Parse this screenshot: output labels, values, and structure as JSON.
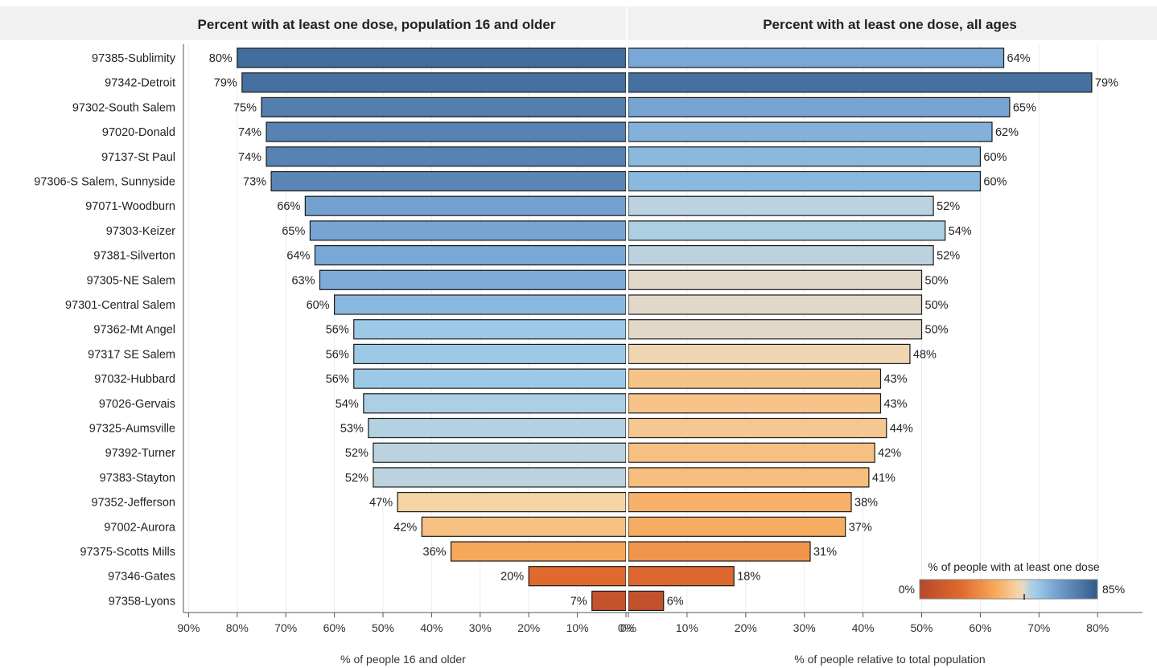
{
  "chart_data": {
    "type": "bar",
    "categories": [
      "97385-Sublimity",
      "97342-Detroit",
      "97302-South Salem",
      "97020-Donald",
      "97137-St Paul",
      "97306-S Salem, Sunnyside",
      "97071-Woodburn",
      "97303-Keizer",
      "97381-Silverton",
      "97305-NE Salem",
      "97301-Central Salem",
      "97362-Mt Angel",
      "97317 SE Salem",
      "97032-Hubbard",
      "97026-Gervais",
      "97325-Aumsville",
      "97392-Turner",
      "97383-Stayton",
      "97352-Jefferson",
      "97002-Aurora",
      "97375-Scotts Mills",
      "97346-Gates",
      "97358-Lyons"
    ],
    "panels": [
      {
        "title": "Percent with at least one dose, population 16 and older",
        "xlabel": "% of people 16 and older",
        "xlim": [
          0,
          90
        ],
        "direction": "reversed",
        "ticks": [
          "90%",
          "80%",
          "70%",
          "60%",
          "50%",
          "40%",
          "30%",
          "20%",
          "10%",
          "0%"
        ],
        "values": [
          80,
          79,
          75,
          74,
          74,
          73,
          66,
          65,
          64,
          63,
          60,
          56,
          56,
          56,
          54,
          53,
          52,
          52,
          47,
          42,
          36,
          20,
          7
        ],
        "labels": [
          "80%",
          "79%",
          "75%",
          "74%",
          "74%",
          "73%",
          "66%",
          "65%",
          "64%",
          "63%",
          "60%",
          "56%",
          "56%",
          "56%",
          "54%",
          "53%",
          "52%",
          "52%",
          "47%",
          "42%",
          "36%",
          "20%",
          "7%"
        ]
      },
      {
        "title": "Percent with at least one dose, all ages",
        "xlabel": "% of people relative to total population",
        "xlim": [
          0,
          90
        ],
        "direction": "normal",
        "ticks": [
          "0%",
          "10%",
          "20%",
          "30%",
          "40%",
          "50%",
          "60%",
          "70%",
          "80%"
        ],
        "values": [
          64,
          79,
          65,
          62,
          60,
          60,
          52,
          54,
          52,
          50,
          50,
          50,
          48,
          43,
          43,
          44,
          42,
          41,
          38,
          37,
          31,
          18,
          6
        ],
        "labels": [
          "64%",
          "79%",
          "65%",
          "62%",
          "60%",
          "60%",
          "52%",
          "54%",
          "52%",
          "50%",
          "50%",
          "50%",
          "48%",
          "43%",
          "43%",
          "44%",
          "42%",
          "41%",
          "38%",
          "37%",
          "31%",
          "18%",
          "6%"
        ]
      }
    ],
    "legend": {
      "title": "% of people with at least one dose",
      "min_label": "0%",
      "max_label": "85%",
      "range": [
        0,
        85
      ],
      "placement": "bottom-right"
    },
    "color_scale": {
      "stops": [
        {
          "v": 0,
          "color": "#b5482a"
        },
        {
          "v": 20,
          "color": "#e06a2e"
        },
        {
          "v": 36,
          "color": "#f7a95a"
        },
        {
          "v": 47,
          "color": "#f5d4a5"
        },
        {
          "v": 50,
          "color": "#e2d8c8"
        },
        {
          "v": 52,
          "color": "#bcd3df"
        },
        {
          "v": 56,
          "color": "#9ccae6"
        },
        {
          "v": 64,
          "color": "#7aa8d6"
        },
        {
          "v": 73,
          "color": "#5b85b5"
        },
        {
          "v": 85,
          "color": "#2f5b8b"
        }
      ]
    },
    "grid": true
  }
}
